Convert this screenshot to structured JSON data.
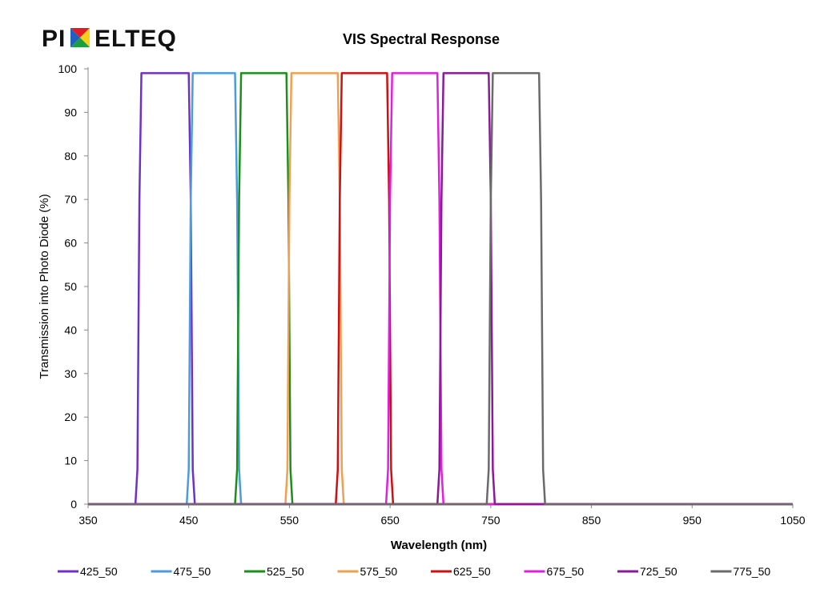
{
  "logo": {
    "text_before": "PI",
    "text_after": "ELTEQ",
    "mark_colors": [
      "#e31b23",
      "#f7d117",
      "#1a9e3f",
      "#1f5fbf"
    ]
  },
  "chart_data": {
    "type": "line",
    "title": "VIS Spectral Response",
    "xlabel": "Wavelength (nm)",
    "ylabel": "Transmission into Photo Diode (%)",
    "xlim": [
      350,
      1050
    ],
    "ylim": [
      0,
      100
    ],
    "xticks": [
      350,
      450,
      550,
      650,
      750,
      850,
      950,
      1050
    ],
    "yticks": [
      0,
      10,
      20,
      30,
      40,
      50,
      60,
      70,
      80,
      90,
      100
    ],
    "grid": false,
    "legend_position": "bottom",
    "series": [
      {
        "name": "425_50",
        "color": "#7030c8",
        "x": [
          350,
          397,
          399,
          401,
          403,
          450,
          452,
          454,
          456,
          1050
        ],
        "y": [
          0,
          0,
          8,
          70,
          99,
          99,
          70,
          8,
          0,
          0
        ]
      },
      {
        "name": "475_50",
        "color": "#4a9be0",
        "x": [
          350,
          448,
          450,
          452,
          454,
          496,
          498,
          500,
          502,
          1050
        ],
        "y": [
          0,
          0,
          8,
          70,
          99,
          99,
          70,
          8,
          0,
          0
        ]
      },
      {
        "name": "525_50",
        "color": "#1a8f1a",
        "x": [
          350,
          496,
          498,
          500,
          502,
          547,
          549,
          551,
          553,
          1050
        ],
        "y": [
          0,
          0,
          8,
          70,
          99,
          99,
          70,
          8,
          0,
          0
        ]
      },
      {
        "name": "575_50",
        "color": "#f0a050",
        "x": [
          350,
          546,
          548,
          550,
          552,
          598,
          600,
          602,
          604,
          1050
        ],
        "y": [
          0,
          0,
          8,
          70,
          99,
          99,
          70,
          8,
          0,
          0
        ]
      },
      {
        "name": "625_50",
        "color": "#d01010",
        "x": [
          350,
          596,
          598,
          600,
          602,
          647,
          649,
          651,
          653,
          1050
        ],
        "y": [
          0,
          0,
          8,
          70,
          99,
          99,
          70,
          8,
          0,
          0
        ]
      },
      {
        "name": "675_50",
        "color": "#e020e0",
        "x": [
          350,
          646,
          648,
          650,
          652,
          697,
          699,
          701,
          703,
          1050
        ],
        "y": [
          0,
          0,
          8,
          70,
          99,
          99,
          70,
          8,
          0,
          0
        ]
      },
      {
        "name": "725_50",
        "color": "#8a1a9a",
        "x": [
          350,
          697,
          699,
          701,
          703,
          748,
          750,
          752,
          754,
          1050
        ],
        "y": [
          0,
          0,
          8,
          70,
          99,
          99,
          70,
          8,
          0,
          0
        ]
      },
      {
        "name": "775_50",
        "color": "#6a6a6a",
        "x": [
          350,
          746,
          748,
          750,
          752,
          798,
          800,
          802,
          804,
          1050
        ],
        "y": [
          0,
          0,
          8,
          70,
          99,
          99,
          70,
          8,
          0,
          0
        ]
      }
    ]
  }
}
